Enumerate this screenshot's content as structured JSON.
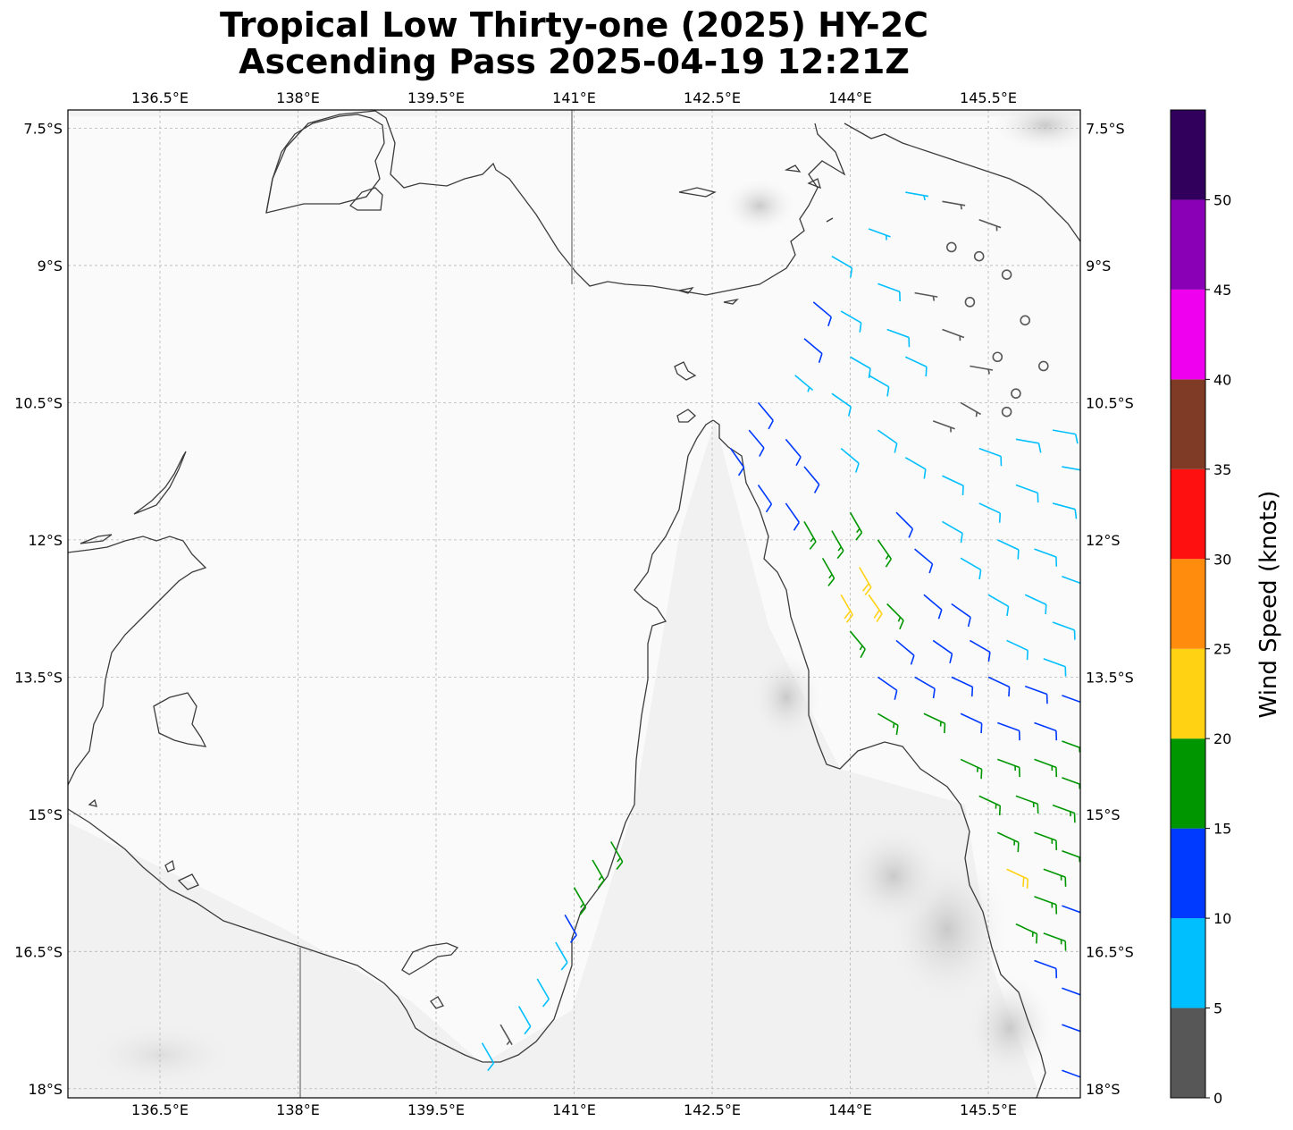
{
  "title": {
    "line1": "Tropical Low Thirty-one (2025) HY-2C",
    "line2": "Ascending Pass 2025-04-19 12:21Z"
  },
  "map": {
    "lon_range": [
      135.5,
      146.5
    ],
    "lat_range": [
      -18.1,
      -7.3
    ],
    "lon_ticks": [
      {
        "value": 136.5,
        "label": "136.5°E"
      },
      {
        "value": 138.0,
        "label": "138°E"
      },
      {
        "value": 139.5,
        "label": "139.5°E"
      },
      {
        "value": 141.0,
        "label": "141°E"
      },
      {
        "value": 142.5,
        "label": "142.5°E"
      },
      {
        "value": 144.0,
        "label": "144°E"
      },
      {
        "value": 145.5,
        "label": "145.5°E"
      }
    ],
    "lat_ticks": [
      {
        "value": -7.5,
        "label": "7.5°S"
      },
      {
        "value": -9.0,
        "label": "9°S"
      },
      {
        "value": -10.5,
        "label": "10.5°S"
      },
      {
        "value": -12.0,
        "label": "12°S"
      },
      {
        "value": -13.5,
        "label": "13.5°S"
      },
      {
        "value": -15.0,
        "label": "15°S"
      },
      {
        "value": -16.5,
        "label": "16.5°S"
      },
      {
        "value": -18.0,
        "label": "18°S"
      }
    ],
    "gridlines": true,
    "background": "grayscale topography",
    "coastline_color": "#3c3c3c"
  },
  "colorbar": {
    "label": "Wind Speed (knots)",
    "ticks": [
      {
        "value": 0,
        "label": "0"
      },
      {
        "value": 5,
        "label": "5"
      },
      {
        "value": 10,
        "label": "10"
      },
      {
        "value": 15,
        "label": "15"
      },
      {
        "value": 20,
        "label": "20"
      },
      {
        "value": 25,
        "label": "25"
      },
      {
        "value": 30,
        "label": "30"
      },
      {
        "value": 35,
        "label": "35"
      },
      {
        "value": 40,
        "label": "40"
      },
      {
        "value": 45,
        "label": "45"
      },
      {
        "value": 50,
        "label": "50"
      }
    ],
    "bins": [
      {
        "min": 0,
        "max": 5,
        "color": "#575757"
      },
      {
        "min": 5,
        "max": 10,
        "color": "#00bfff"
      },
      {
        "min": 10,
        "max": 15,
        "color": "#0039ff"
      },
      {
        "min": 15,
        "max": 20,
        "color": "#009600"
      },
      {
        "min": 20,
        "max": 25,
        "color": "#ffd213"
      },
      {
        "min": 25,
        "max": 30,
        "color": "#ff8c0c"
      },
      {
        "min": 30,
        "max": 35,
        "color": "#ff1010"
      },
      {
        "min": 35,
        "max": 40,
        "color": "#7f3b26"
      },
      {
        "min": 40,
        "max": 45,
        "color": "#ef00ef"
      },
      {
        "min": 45,
        "max": 50,
        "color": "#8a00b7"
      },
      {
        "min": 50,
        "max": 55,
        "color": "#30005c"
      }
    ]
  },
  "wind_barbs": [
    {
      "lon": 143.8,
      "lat": -8.9,
      "speed": 8,
      "dir": 120
    },
    {
      "lon": 144.2,
      "lat": -8.6,
      "speed": 7,
      "dir": 110
    },
    {
      "lon": 144.6,
      "lat": -8.2,
      "speed": 7,
      "dir": 100
    },
    {
      "lon": 145.0,
      "lat": -8.3,
      "speed": 4,
      "dir": 100
    },
    {
      "lon": 145.4,
      "lat": -8.5,
      "speed": 4,
      "dir": 110
    },
    {
      "lon": 145.1,
      "lat": -8.8,
      "speed": 0,
      "dir": 0
    },
    {
      "lon": 145.4,
      "lat": -8.9,
      "speed": 0,
      "dir": 0
    },
    {
      "lon": 145.7,
      "lat": -9.1,
      "speed": 0,
      "dir": 0
    },
    {
      "lon": 145.9,
      "lat": -9.6,
      "speed": 0,
      "dir": 0
    },
    {
      "lon": 146.1,
      "lat": -10.1,
      "speed": 0,
      "dir": 0
    },
    {
      "lon": 145.8,
      "lat": -10.4,
      "speed": 0,
      "dir": 0
    },
    {
      "lon": 145.6,
      "lat": -10.0,
      "speed": 0,
      "dir": 0
    },
    {
      "lon": 145.3,
      "lat": -9.4,
      "speed": 0,
      "dir": 0
    },
    {
      "lon": 145.7,
      "lat": -10.6,
      "speed": 0,
      "dir": 0
    },
    {
      "lon": 144.7,
      "lat": -9.3,
      "speed": 4,
      "dir": 100
    },
    {
      "lon": 145.0,
      "lat": -9.7,
      "speed": 4,
      "dir": 110
    },
    {
      "lon": 145.3,
      "lat": -10.1,
      "speed": 4,
      "dir": 100
    },
    {
      "lon": 145.2,
      "lat": -10.5,
      "speed": 4,
      "dir": 120
    },
    {
      "lon": 144.9,
      "lat": -10.7,
      "speed": 4,
      "dir": 110
    },
    {
      "lon": 143.6,
      "lat": -9.4,
      "speed": 12,
      "dir": 130
    },
    {
      "lon": 143.5,
      "lat": -9.8,
      "speed": 12,
      "dir": 130
    },
    {
      "lon": 143.9,
      "lat": -9.5,
      "speed": 8,
      "dir": 120
    },
    {
      "lon": 144.3,
      "lat": -9.2,
      "speed": 8,
      "dir": 110
    },
    {
      "lon": 144.4,
      "lat": -9.7,
      "speed": 8,
      "dir": 110
    },
    {
      "lon": 144.0,
      "lat": -10.0,
      "speed": 8,
      "dir": 120
    },
    {
      "lon": 143.4,
      "lat": -10.2,
      "speed": 7,
      "dir": 130
    },
    {
      "lon": 143.8,
      "lat": -10.4,
      "speed": 8,
      "dir": 125
    },
    {
      "lon": 144.2,
      "lat": -10.2,
      "speed": 8,
      "dir": 120
    },
    {
      "lon": 144.6,
      "lat": -10.0,
      "speed": 8,
      "dir": 115
    },
    {
      "lon": 143.0,
      "lat": -10.5,
      "speed": 12,
      "dir": 140
    },
    {
      "lon": 142.9,
      "lat": -10.8,
      "speed": 12,
      "dir": 140
    },
    {
      "lon": 142.7,
      "lat": -11.0,
      "speed": 12,
      "dir": 145
    },
    {
      "lon": 143.3,
      "lat": -10.9,
      "speed": 12,
      "dir": 140
    },
    {
      "lon": 143.5,
      "lat": -11.2,
      "speed": 12,
      "dir": 140
    },
    {
      "lon": 143.9,
      "lat": -11.0,
      "speed": 8,
      "dir": 130
    },
    {
      "lon": 144.3,
      "lat": -10.8,
      "speed": 8,
      "dir": 125
    },
    {
      "lon": 144.6,
      "lat": -11.1,
      "speed": 8,
      "dir": 120
    },
    {
      "lon": 145.0,
      "lat": -11.3,
      "speed": 8,
      "dir": 115
    },
    {
      "lon": 145.4,
      "lat": -11.0,
      "speed": 8,
      "dir": 110
    },
    {
      "lon": 145.8,
      "lat": -10.9,
      "speed": 8,
      "dir": 100
    },
    {
      "lon": 146.2,
      "lat": -10.8,
      "speed": 8,
      "dir": 100
    },
    {
      "lon": 146.3,
      "lat": -11.2,
      "speed": 8,
      "dir": 100
    },
    {
      "lon": 143.0,
      "lat": -11.4,
      "speed": 12,
      "dir": 145
    },
    {
      "lon": 143.3,
      "lat": -11.6,
      "speed": 12,
      "dir": 145
    },
    {
      "lon": 143.5,
      "lat": -11.8,
      "speed": 17,
      "dir": 150
    },
    {
      "lon": 143.8,
      "lat": -11.9,
      "speed": 17,
      "dir": 150
    },
    {
      "lon": 143.7,
      "lat": -12.2,
      "speed": 17,
      "dir": 150
    },
    {
      "lon": 144.0,
      "lat": -11.7,
      "speed": 17,
      "dir": 150
    },
    {
      "lon": 144.1,
      "lat": -12.3,
      "speed": 22,
      "dir": 150
    },
    {
      "lon": 143.9,
      "lat": -12.6,
      "speed": 22,
      "dir": 150
    },
    {
      "lon": 144.2,
      "lat": -12.6,
      "speed": 22,
      "dir": 145
    },
    {
      "lon": 144.3,
      "lat": -12.0,
      "speed": 17,
      "dir": 145
    },
    {
      "lon": 144.0,
      "lat": -13.0,
      "speed": 17,
      "dir": 140
    },
    {
      "lon": 144.4,
      "lat": -12.7,
      "speed": 17,
      "dir": 135
    },
    {
      "lon": 144.5,
      "lat": -11.7,
      "speed": 12,
      "dir": 135
    },
    {
      "lon": 144.7,
      "lat": -12.1,
      "speed": 12,
      "dir": 130
    },
    {
      "lon": 145.0,
      "lat": -11.8,
      "speed": 8,
      "dir": 120
    },
    {
      "lon": 145.4,
      "lat": -11.6,
      "speed": 8,
      "dir": 115
    },
    {
      "lon": 145.8,
      "lat": -11.4,
      "speed": 8,
      "dir": 110
    },
    {
      "lon": 146.2,
      "lat": -11.6,
      "speed": 8,
      "dir": 105
    },
    {
      "lon": 145.2,
      "lat": -12.2,
      "speed": 8,
      "dir": 120
    },
    {
      "lon": 145.6,
      "lat": -12.0,
      "speed": 8,
      "dir": 115
    },
    {
      "lon": 146.0,
      "lat": -12.1,
      "speed": 8,
      "dir": 110
    },
    {
      "lon": 146.3,
      "lat": -12.4,
      "speed": 8,
      "dir": 110
    },
    {
      "lon": 144.8,
      "lat": -12.6,
      "speed": 12,
      "dir": 130
    },
    {
      "lon": 145.1,
      "lat": -12.7,
      "speed": 12,
      "dir": 125
    },
    {
      "lon": 145.5,
      "lat": -12.6,
      "speed": 8,
      "dir": 120
    },
    {
      "lon": 145.9,
      "lat": -12.6,
      "speed": 8,
      "dir": 115
    },
    {
      "lon": 146.2,
      "lat": -12.9,
      "speed": 8,
      "dir": 110
    },
    {
      "lon": 144.5,
      "lat": -13.1,
      "speed": 12,
      "dir": 130
    },
    {
      "lon": 144.9,
      "lat": -13.1,
      "speed": 12,
      "dir": 125
    },
    {
      "lon": 145.3,
      "lat": -13.1,
      "speed": 12,
      "dir": 120
    },
    {
      "lon": 145.7,
      "lat": -13.1,
      "speed": 8,
      "dir": 115
    },
    {
      "lon": 146.1,
      "lat": -13.3,
      "speed": 8,
      "dir": 110
    },
    {
      "lon": 144.3,
      "lat": -13.5,
      "speed": 12,
      "dir": 125
    },
    {
      "lon": 144.7,
      "lat": -13.5,
      "speed": 12,
      "dir": 120
    },
    {
      "lon": 145.1,
      "lat": -13.5,
      "speed": 12,
      "dir": 115
    },
    {
      "lon": 145.5,
      "lat": -13.5,
      "speed": 12,
      "dir": 115
    },
    {
      "lon": 145.9,
      "lat": -13.6,
      "speed": 12,
      "dir": 110
    },
    {
      "lon": 146.3,
      "lat": -13.7,
      "speed": 12,
      "dir": 110
    },
    {
      "lon": 144.3,
      "lat": -13.9,
      "speed": 17,
      "dir": 120
    },
    {
      "lon": 144.8,
      "lat": -13.9,
      "speed": 17,
      "dir": 115
    },
    {
      "lon": 145.2,
      "lat": -13.9,
      "speed": 12,
      "dir": 115
    },
    {
      "lon": 145.6,
      "lat": -14.0,
      "speed": 12,
      "dir": 110
    },
    {
      "lon": 146.0,
      "lat": -14.0,
      "speed": 12,
      "dir": 110
    },
    {
      "lon": 146.3,
      "lat": -14.2,
      "speed": 17,
      "dir": 110
    },
    {
      "lon": 145.2,
      "lat": -14.4,
      "speed": 17,
      "dir": 115
    },
    {
      "lon": 145.6,
      "lat": -14.4,
      "speed": 17,
      "dir": 110
    },
    {
      "lon": 146.0,
      "lat": -14.4,
      "speed": 17,
      "dir": 110
    },
    {
      "lon": 146.3,
      "lat": -14.6,
      "speed": 17,
      "dir": 110
    },
    {
      "lon": 145.4,
      "lat": -14.8,
      "speed": 17,
      "dir": 115
    },
    {
      "lon": 145.8,
      "lat": -14.8,
      "speed": 17,
      "dir": 110
    },
    {
      "lon": 146.2,
      "lat": -14.9,
      "speed": 17,
      "dir": 110
    },
    {
      "lon": 145.6,
      "lat": -15.2,
      "speed": 17,
      "dir": 115
    },
    {
      "lon": 146.0,
      "lat": -15.2,
      "speed": 17,
      "dir": 110
    },
    {
      "lon": 146.3,
      "lat": -15.4,
      "speed": 17,
      "dir": 110
    },
    {
      "lon": 145.7,
      "lat": -15.6,
      "speed": 22,
      "dir": 115
    },
    {
      "lon": 146.1,
      "lat": -15.6,
      "speed": 17,
      "dir": 110
    },
    {
      "lon": 146.0,
      "lat": -15.9,
      "speed": 17,
      "dir": 110
    },
    {
      "lon": 146.3,
      "lat": -16.0,
      "speed": 12,
      "dir": 110
    },
    {
      "lon": 145.8,
      "lat": -16.2,
      "speed": 17,
      "dir": 115
    },
    {
      "lon": 146.1,
      "lat": -16.3,
      "speed": 17,
      "dir": 110
    },
    {
      "lon": 146.0,
      "lat": -16.6,
      "speed": 12,
      "dir": 110
    },
    {
      "lon": 146.3,
      "lat": -16.9,
      "speed": 12,
      "dir": 110
    },
    {
      "lon": 146.3,
      "lat": -17.3,
      "speed": 12,
      "dir": 110
    },
    {
      "lon": 146.3,
      "lat": -17.8,
      "speed": 12,
      "dir": 110
    },
    {
      "lon": 141.4,
      "lat": -15.3,
      "speed": 17,
      "dir": 150
    },
    {
      "lon": 141.2,
      "lat": -15.5,
      "speed": 17,
      "dir": 150
    },
    {
      "lon": 141.0,
      "lat": -15.8,
      "speed": 17,
      "dir": 150
    },
    {
      "lon": 140.9,
      "lat": -16.1,
      "speed": 12,
      "dir": 150
    },
    {
      "lon": 140.8,
      "lat": -16.4,
      "speed": 8,
      "dir": 150
    },
    {
      "lon": 140.6,
      "lat": -16.8,
      "speed": 8,
      "dir": 150
    },
    {
      "lon": 140.4,
      "lat": -17.1,
      "speed": 8,
      "dir": 150
    },
    {
      "lon": 140.2,
      "lat": -17.3,
      "speed": 4,
      "dir": 150
    },
    {
      "lon": 140.0,
      "lat": -17.5,
      "speed": 8,
      "dir": 150
    }
  ]
}
